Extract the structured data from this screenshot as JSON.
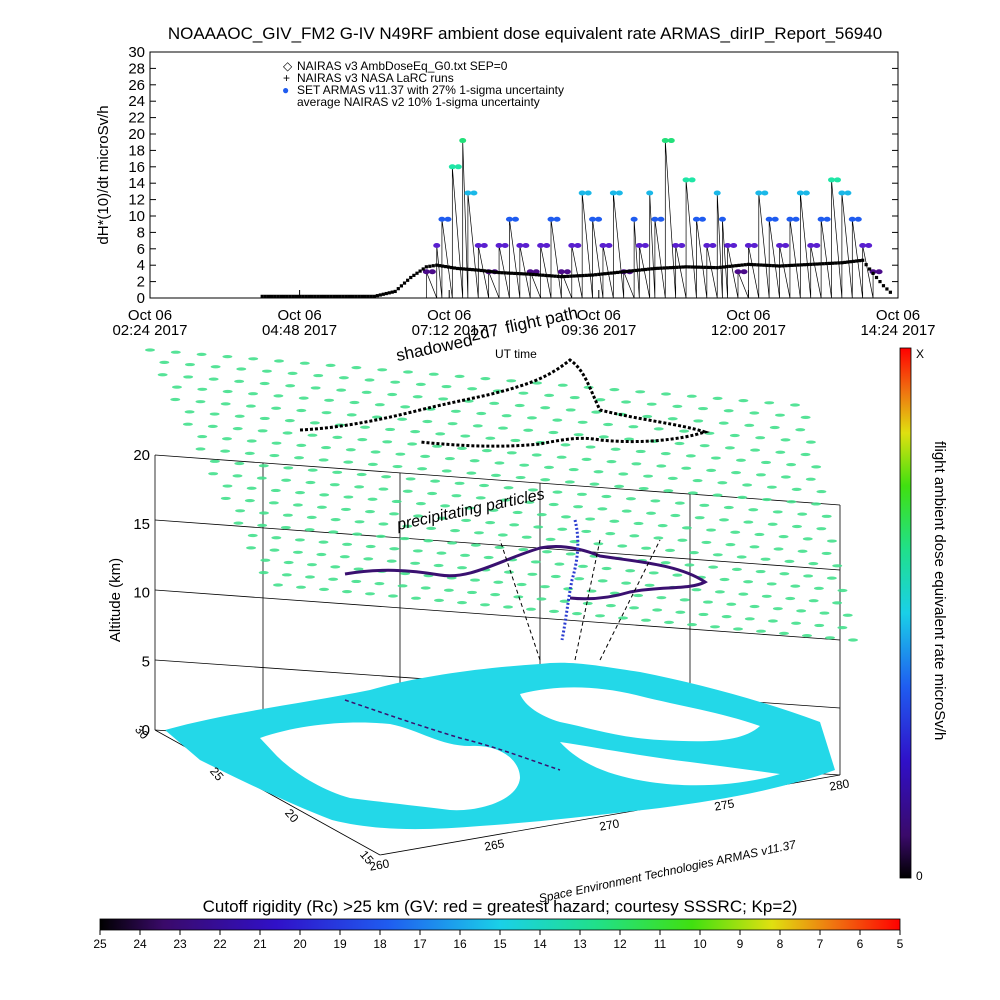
{
  "chart_data": [
    {
      "type": "scatter",
      "title": "NOAAAOC_GIV_FM2 G-IV   N49RF   ambient dose equivalent rate ARMAS_dirIP_Report_56940",
      "ylabel": "dH*(10)/dt microSv/h",
      "ylim": [
        0,
        30
      ],
      "yticks": [
        0,
        2,
        4,
        6,
        8,
        10,
        12,
        14,
        16,
        18,
        20,
        22,
        24,
        26,
        28,
        30
      ],
      "xlim": [
        "2017-10-06 02:24",
        "2017-10-06 14:24"
      ],
      "xticks": [
        {
          "line1": "Oct 06",
          "line2": "02:24 2017"
        },
        {
          "line1": "Oct 06",
          "line2": "04:48 2017"
        },
        {
          "line1": "Oct 06",
          "line2": "07:12 2017"
        },
        {
          "line1": "Oct 06",
          "line2": "09:36 2017"
        },
        {
          "line1": "Oct 06",
          "line2": "12:00 2017"
        },
        {
          "line1": "Oct 06",
          "line2": "14:24 2017"
        }
      ],
      "legend_position": "top-left",
      "legend": [
        {
          "symbol": "◇",
          "label": "NAIRAS v3 AmbDoseEq_G0.txt SEP=0"
        },
        {
          "symbol": "+",
          "label": "NAIRAS v3 NASA LaRC runs"
        },
        {
          "symbol": "●",
          "label": "SET ARMAS v11.37 with 27% 1-sigma uncertainty"
        },
        {
          "symbol": "",
          "label": "average NAIRAS v2 10% 1-sigma uncertainty"
        }
      ],
      "series": [
        {
          "name": "NAIRAS v3 AmbDoseEq_G0.txt SEP=0",
          "x": [
            "04:12",
            "04:48",
            "05:24",
            "06:00",
            "06:20",
            "06:35",
            "06:50",
            "07:00",
            "07:20",
            "07:40",
            "08:00",
            "08:30",
            "09:00",
            "09:30",
            "10:00",
            "10:30",
            "11:00",
            "11:30",
            "12:00",
            "12:30",
            "13:00",
            "13:30",
            "13:50",
            "14:00",
            "14:10",
            "14:20"
          ],
          "values": [
            0.2,
            0.2,
            0.2,
            0.2,
            0.8,
            2.5,
            3.8,
            4.0,
            3.6,
            3.4,
            3.1,
            2.9,
            2.6,
            2.8,
            3.2,
            3.6,
            3.8,
            3.7,
            4.1,
            3.9,
            4.1,
            4.3,
            4.6,
            3.0,
            1.5,
            0.3
          ]
        },
        {
          "name": "SET ARMAS v11.37 with 27% 1-sigma uncertainty",
          "x": [
            "06:50",
            "07:00",
            "07:05",
            "07:15",
            "07:25",
            "07:30",
            "07:40",
            "07:50",
            "08:00",
            "08:10",
            "08:20",
            "08:30",
            "08:40",
            "08:50",
            "09:00",
            "09:10",
            "09:20",
            "09:30",
            "09:40",
            "09:50",
            "10:00",
            "10:10",
            "10:15",
            "10:25",
            "10:30",
            "10:40",
            "10:50",
            "11:00",
            "11:10",
            "11:20",
            "11:30",
            "11:35",
            "11:40",
            "11:50",
            "12:00",
            "12:10",
            "12:20",
            "12:30",
            "12:40",
            "12:50",
            "13:00",
            "13:10",
            "13:20",
            "13:30",
            "13:40",
            "13:50",
            "14:00"
          ],
          "values": [
            3.2,
            6.4,
            9.6,
            16,
            19.2,
            12.8,
            6.4,
            3.2,
            6.4,
            9.6,
            6.4,
            3.2,
            6.4,
            9.6,
            3.2,
            6.4,
            12.8,
            9.6,
            6.4,
            12.8,
            3.2,
            9.6,
            6.4,
            12.8,
            9.6,
            19.2,
            6.4,
            14.4,
            9.6,
            6.4,
            12.8,
            9.6,
            6.4,
            3.2,
            6.4,
            12.8,
            9.6,
            6.4,
            9.6,
            12.8,
            6.4,
            9.6,
            14.4,
            12.8,
            9.6,
            6.4,
            3.2
          ]
        }
      ]
    },
    {
      "type": "3d-flight-track",
      "title": "flight path",
      "zlabel": "Altitude (km)",
      "zticks": [
        0,
        5,
        10,
        15,
        20
      ],
      "latitude_ticks": [
        30,
        25,
        20,
        15
      ],
      "longitude_ticks": [
        260,
        265,
        270,
        275,
        280
      ],
      "annotations": [
        "shadowed",
        "2d7",
        "UT time",
        "precipitating particles",
        "Space Environment Technologies ARMAS v11.37"
      ],
      "colorbar": {
        "label": "flight ambient dose equivalent rate microSv/h",
        "top": "X",
        "bottom": "0"
      }
    }
  ],
  "bottom_colorbar": {
    "title": "Cutoff rigidity (Rc) >25 km (GV: red = greatest hazard; courtesy SSSRC; Kp=2)",
    "ticks": [
      25,
      24,
      23,
      22,
      21,
      20,
      19,
      18,
      17,
      16,
      15,
      14,
      13,
      12,
      11,
      10,
      9,
      8,
      7,
      6,
      5
    ]
  },
  "colors": {
    "nairas_marker": "#000000",
    "armas_levels": [
      "#4b0b8a",
      "#5a1fd0",
      "#1f5cf0",
      "#1ab8e8",
      "#1fe6a6",
      "#22e07a"
    ],
    "map_water": "#23d8e8",
    "map_land": "#ffffff",
    "track_low": "#3a1070",
    "track_mid": "#2a3cd0",
    "grid_cells": "#42e08c"
  }
}
